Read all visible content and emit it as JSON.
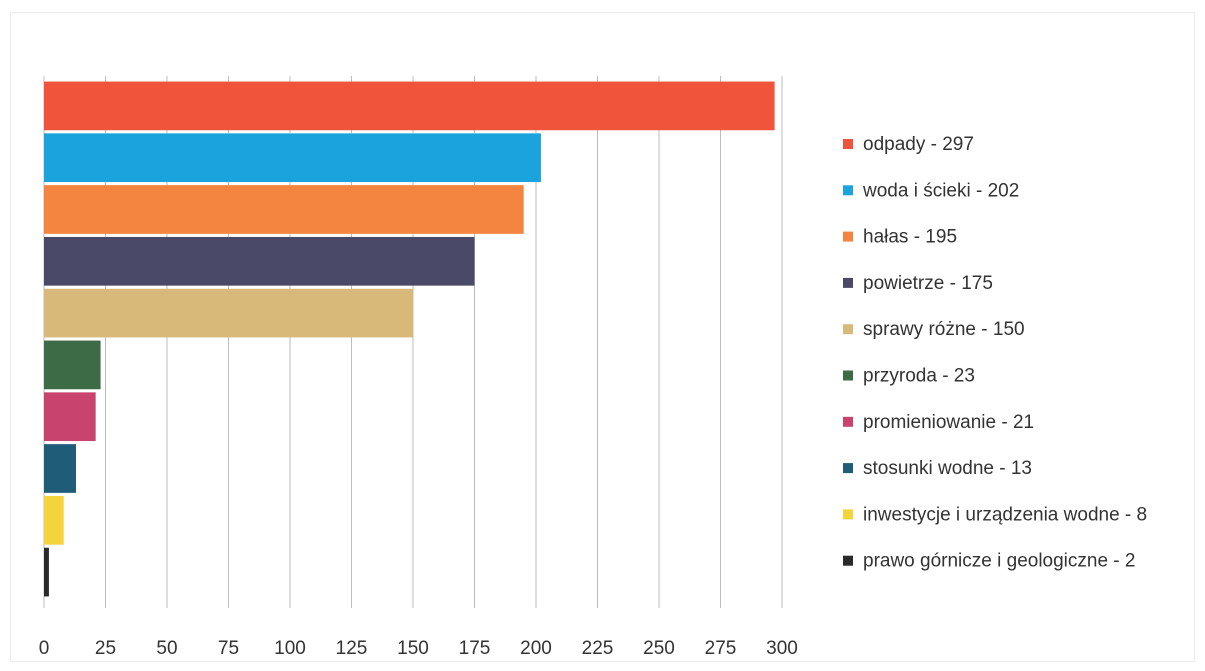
{
  "chart_data": {
    "type": "bar",
    "orientation": "horizontal",
    "categories": [
      "odpady",
      "woda i ścieki",
      "hałas",
      "powietrze",
      "sprawy różne",
      "przyroda",
      "promieniowanie",
      "stosunki wodne",
      "inwestycje i urządzenia wodne",
      "prawo górnicze i geologiczne"
    ],
    "values": [
      297,
      202,
      195,
      175,
      150,
      23,
      21,
      13,
      8,
      2
    ],
    "colors": [
      "#f0553c",
      "#1aa3dc",
      "#f48540",
      "#4a4a68",
      "#d9b97a",
      "#3d6b46",
      "#c8446e",
      "#1f5c78",
      "#f5d33c",
      "#2a2a2a"
    ],
    "legend_labels": [
      "odpady - 297",
      "woda i ścieki - 202",
      "hałas - 195",
      "powietrze - 175",
      "sprawy różne - 150",
      "przyroda - 23",
      "promieniowanie - 21",
      "stosunki wodne - 13",
      "inwestycje i urządzenia wodne - 8",
      "prawo górnicze i geologiczne - 2"
    ],
    "x_ticks": [
      0,
      25,
      50,
      75,
      100,
      125,
      150,
      175,
      200,
      225,
      250,
      275,
      300
    ],
    "xlim": [
      0,
      300
    ],
    "grid": "vertical",
    "legend_position": "right",
    "title": "",
    "xlabel": "",
    "ylabel": ""
  }
}
